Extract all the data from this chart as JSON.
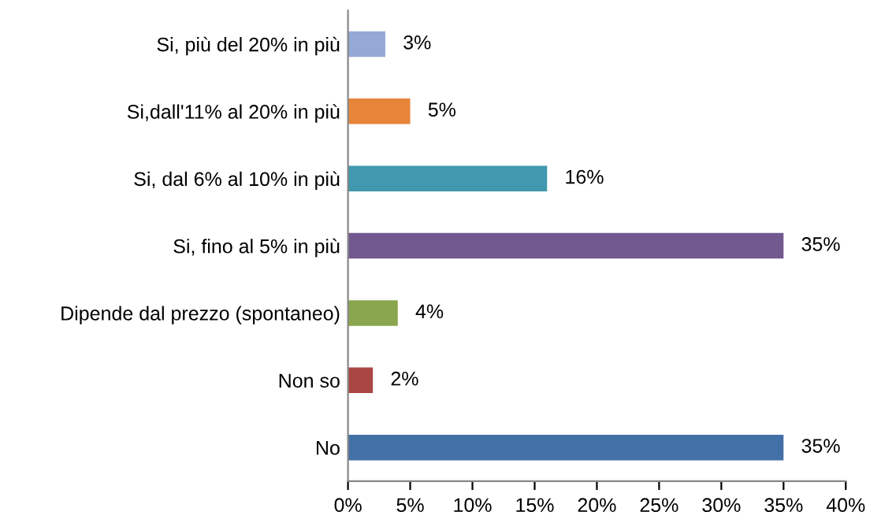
{
  "chart_data": {
    "type": "bar",
    "orientation": "horizontal",
    "categories": [
      "Si, più del 20% in più",
      "Si,dall'11% al 20% in più",
      "Si, dal 6% al 10% in più",
      "Si, fino al 5% in più",
      "Dipende dal prezzo (spontaneo)",
      "Non so",
      "No"
    ],
    "values": [
      3,
      5,
      16,
      35,
      4,
      2,
      35
    ],
    "colors": [
      "#95a9d4",
      "#e6853a",
      "#4198af",
      "#71588f",
      "#8aa64e",
      "#aa4644",
      "#4470a8"
    ],
    "value_labels": [
      "3%",
      "5%",
      "16%",
      "35%",
      "4%",
      "2%",
      "35%"
    ],
    "xlim": [
      0,
      40
    ],
    "xticks": [
      {
        "value": 0,
        "label": "0%"
      },
      {
        "value": 5,
        "label": "5%"
      },
      {
        "value": 10,
        "label": "10%"
      },
      {
        "value": 15,
        "label": "15%"
      },
      {
        "value": 20,
        "label": "20%"
      },
      {
        "value": 25,
        "label": "25%"
      },
      {
        "value": 30,
        "label": "30%"
      },
      {
        "value": 35,
        "label": "35%"
      },
      {
        "value": 40,
        "label": "40%"
      }
    ],
    "grid": false
  }
}
